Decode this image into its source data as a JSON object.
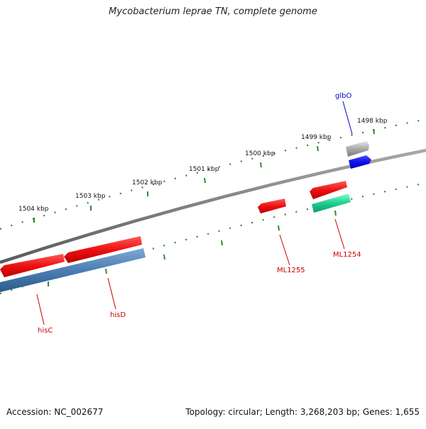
{
  "title": "Mycobacterium leprae TN, complete genome",
  "footer": {
    "accession": "Accession: NC_002677",
    "summary": "Topology: circular; Length: 3,268,203 bp; Genes: 1,655"
  },
  "ruler": {
    "ticks": [
      {
        "label": "1498 kbp"
      },
      {
        "label": "1499 kbp"
      },
      {
        "label": "1500 kbp"
      },
      {
        "label": "1501 kbp"
      },
      {
        "label": "1502 kbp"
      },
      {
        "label": "1503 kbp"
      },
      {
        "label": "1504 kbp"
      }
    ]
  },
  "features": [
    {
      "name": "glbO",
      "strand": "+",
      "label_color": "#0000cc"
    },
    {
      "name": "ML1254",
      "strand": "-",
      "label_color": "#cc0000"
    },
    {
      "name": "ML1255",
      "strand": "-",
      "label_color": "#cc0000"
    },
    {
      "name": "hisD",
      "strand": "-",
      "label_color": "#cc0000"
    },
    {
      "name": "hisC",
      "strand": "-",
      "label_color": "#cc0000"
    }
  ],
  "colors": {
    "backbone": "#7f7f7f",
    "tick": "#2e8b2e",
    "cds": "#ee1111",
    "gene": "#4a7fb5",
    "trna": "#1fcf8f",
    "misc_gray": "#a9a9a9",
    "blue_feature": "#1111ee"
  }
}
